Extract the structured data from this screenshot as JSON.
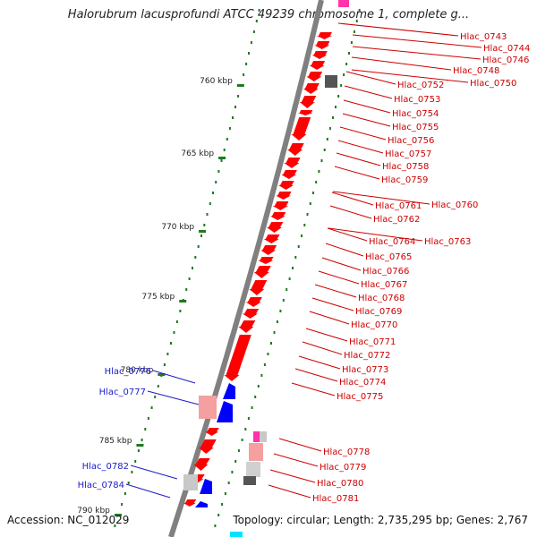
{
  "title": "Halorubrum lacusprofundi ATCC 49239 chromosome 1, complete g...",
  "footer": {
    "accession": "Accession: NC_012029",
    "summary": "Topology: circular; Length: 2,735,295 bp; Genes: 2,767"
  },
  "colors": {
    "backbone": "#808080",
    "forward_gene": "#ff0000",
    "reverse_gene": "#0000ff",
    "pseudo_gene": "#f4a0a0",
    "ruler": "#1e7a1e",
    "forward_label": "#cc0000",
    "reverse_label": "#1a1acc",
    "magenta": "#ff33aa",
    "cyan": "#00e5ff"
  },
  "ruler": {
    "tick_labels": [
      "760 kbp",
      "765 kbp",
      "770 kbp",
      "775 kbp",
      "780 kbp",
      "785 kbp",
      "790 kbp"
    ]
  },
  "forward_labels": [
    "Hlac_0743",
    "Hlac_0744",
    "Hlac_0746",
    "Hlac_0748",
    "Hlac_0750",
    "Hlac_0752",
    "Hlac_0753",
    "Hlac_0754",
    "Hlac_0755",
    "Hlac_0756",
    "Hlac_0757",
    "Hlac_0758",
    "Hlac_0759",
    "Hlac_0760",
    "Hlac_0761",
    "Hlac_0762",
    "Hlac_0763",
    "Hlac_0764",
    "Hlac_0765",
    "Hlac_0766",
    "Hlac_0767",
    "Hlac_0768",
    "Hlac_0769",
    "Hlac_0770",
    "Hlac_0771",
    "Hlac_0772",
    "Hlac_0773",
    "Hlac_0774",
    "Hlac_0775",
    "Hlac_0778",
    "Hlac_0779",
    "Hlac_0780",
    "Hlac_0781"
  ],
  "reverse_labels": [
    "Hlac_0776",
    "Hlac_0777",
    "Hlac_0782",
    "Hlac_0784"
  ]
}
